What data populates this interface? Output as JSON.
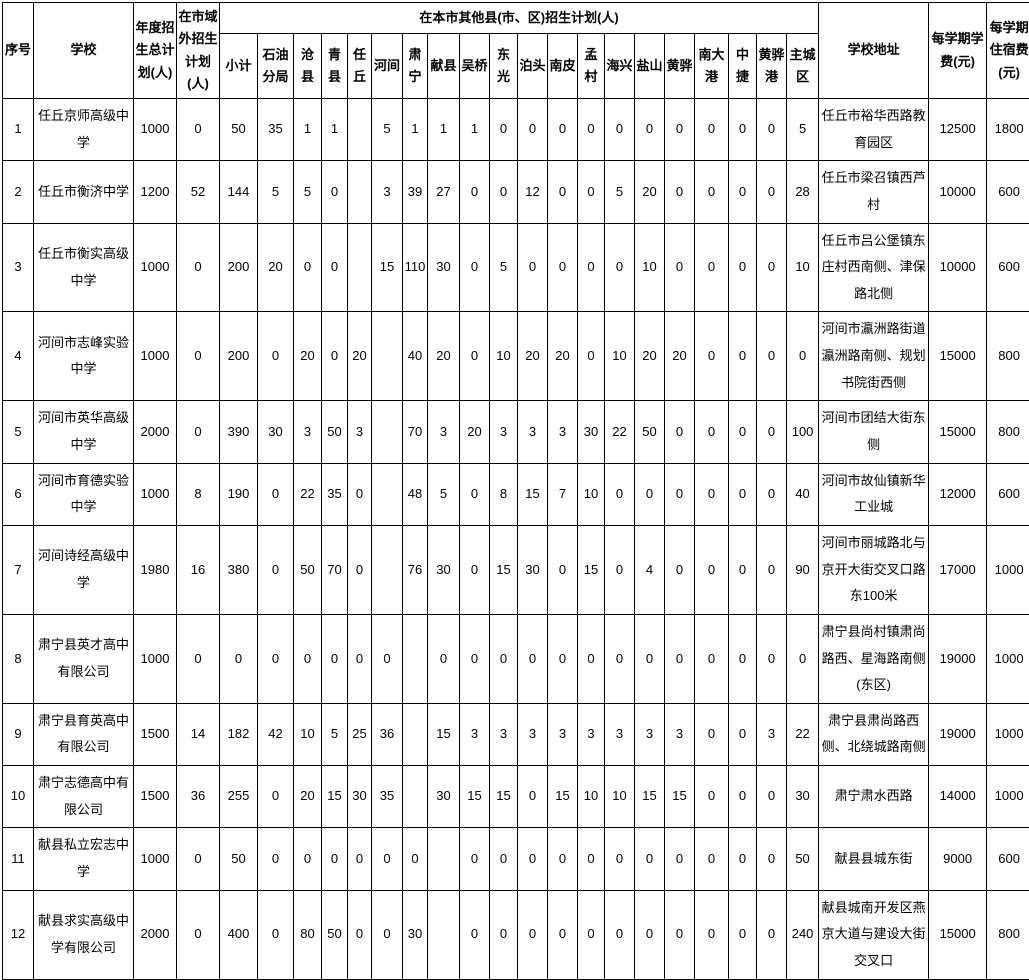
{
  "table": {
    "headers": {
      "no": "序号",
      "school": "学校",
      "annual_plan": "年度招生总计划(人)",
      "outside_city_plan": "在市域外招生计划(人)",
      "county_group": "在本市其他县(市、区)招生计划(人)",
      "counties": [
        "小计",
        "石油分局",
        "沧县",
        "青县",
        "任丘",
        "河间",
        "肃宁",
        "献县",
        "吴桥",
        "东光",
        "泊头",
        "南皮",
        "孟村",
        "海兴",
        "盐山",
        "黄骅",
        "南大港",
        "中捷",
        "黄骅港",
        "主城区"
      ],
      "address": "学校地址",
      "tuition": "每学期学费(元)",
      "lodging": "每学期住宿费(元)"
    },
    "rows": [
      {
        "no": "1",
        "school": "任丘京师高级中学",
        "annual": "1000",
        "outside": "0",
        "counties": [
          "50",
          "35",
          "1",
          "1",
          "",
          "5",
          "1",
          "1",
          "1",
          "0",
          "0",
          "0",
          "0",
          "0",
          "0",
          "0",
          "0",
          "0",
          "0",
          "5"
        ],
        "address": "任丘市裕华西路教育园区",
        "tuition": "12500",
        "lodging": "1800"
      },
      {
        "no": "2",
        "school": "任丘市衡济中学",
        "annual": "1200",
        "outside": "52",
        "counties": [
          "144",
          "5",
          "5",
          "0",
          "",
          "3",
          "39",
          "27",
          "0",
          "0",
          "12",
          "0",
          "0",
          "5",
          "20",
          "0",
          "0",
          "0",
          "0",
          "28"
        ],
        "address": "任丘市梁召镇西芦村",
        "tuition": "10000",
        "lodging": "600"
      },
      {
        "no": "3",
        "school": "任丘市衡实高级中学",
        "annual": "1000",
        "outside": "0",
        "counties": [
          "200",
          "20",
          "0",
          "0",
          "",
          "15",
          "110",
          "30",
          "0",
          "5",
          "0",
          "0",
          "0",
          "0",
          "10",
          "0",
          "0",
          "0",
          "0",
          "10"
        ],
        "address": "任丘市吕公堡镇东庄村西南侧、津保路北侧",
        "tuition": "10000",
        "lodging": "600"
      },
      {
        "no": "4",
        "school": "河间市志峰实验中学",
        "annual": "1000",
        "outside": "0",
        "counties": [
          "200",
          "0",
          "20",
          "0",
          "20",
          "",
          "40",
          "20",
          "0",
          "10",
          "20",
          "20",
          "0",
          "10",
          "20",
          "20",
          "0",
          "0",
          "0",
          "0"
        ],
        "address": "河间市瀛洲路街道瀛洲路南侧、规划书院街西侧",
        "tuition": "15000",
        "lodging": "800"
      },
      {
        "no": "5",
        "school": "河间市英华高级中学",
        "annual": "2000",
        "outside": "0",
        "counties": [
          "390",
          "30",
          "3",
          "50",
          "3",
          "",
          "70",
          "3",
          "20",
          "3",
          "3",
          "3",
          "30",
          "22",
          "50",
          "0",
          "0",
          "0",
          "0",
          "100"
        ],
        "address": "河间市团结大街东侧",
        "tuition": "15000",
        "lodging": "800"
      },
      {
        "no": "6",
        "school": "河间市育德实验中学",
        "annual": "1000",
        "outside": "8",
        "counties": [
          "190",
          "0",
          "22",
          "35",
          "0",
          "",
          "48",
          "5",
          "0",
          "8",
          "15",
          "7",
          "10",
          "0",
          "0",
          "0",
          "0",
          "0",
          "0",
          "40"
        ],
        "address": "河间市故仙镇新华工业城",
        "tuition": "12000",
        "lodging": "600"
      },
      {
        "no": "7",
        "school": "河间诗经高级中学",
        "annual": "1980",
        "outside": "16",
        "counties": [
          "380",
          "0",
          "50",
          "70",
          "0",
          "",
          "76",
          "30",
          "0",
          "15",
          "30",
          "0",
          "15",
          "0",
          "4",
          "0",
          "0",
          "0",
          "0",
          "90"
        ],
        "address": "河间市丽城路北与京开大街交叉口路东100米",
        "tuition": "17000",
        "lodging": "1000"
      },
      {
        "no": "8",
        "school": "肃宁县英才高中有限公司",
        "annual": "1000",
        "outside": "0",
        "counties": [
          "0",
          "0",
          "0",
          "0",
          "0",
          "0",
          "",
          "0",
          "0",
          "0",
          "0",
          "0",
          "0",
          "0",
          "0",
          "0",
          "0",
          "0",
          "0",
          "0"
        ],
        "address": "肃宁县尚村镇肃尚路西、星海路南侧(东区)",
        "tuition": "19000",
        "lodging": "1000"
      },
      {
        "no": "9",
        "school": "肃宁县育英高中有限公司",
        "annual": "1500",
        "outside": "14",
        "counties": [
          "182",
          "42",
          "10",
          "5",
          "25",
          "36",
          "",
          "15",
          "3",
          "3",
          "3",
          "3",
          "3",
          "3",
          "3",
          "3",
          "0",
          "0",
          "3",
          "22"
        ],
        "address": "肃宁县肃尚路西侧、北绕城路南侧",
        "tuition": "19000",
        "lodging": "1000"
      },
      {
        "no": "10",
        "school": "肃宁志德高中有限公司",
        "annual": "1500",
        "outside": "36",
        "counties": [
          "255",
          "0",
          "20",
          "15",
          "30",
          "35",
          "",
          "30",
          "15",
          "15",
          "0",
          "15",
          "10",
          "10",
          "15",
          "15",
          "0",
          "0",
          "0",
          "30"
        ],
        "address": "肃宁肃水西路",
        "tuition": "14000",
        "lodging": "1000"
      },
      {
        "no": "11",
        "school": "献县私立宏志中学",
        "annual": "1000",
        "outside": "0",
        "counties": [
          "50",
          "0",
          "0",
          "0",
          "0",
          "0",
          "0",
          "",
          "0",
          "0",
          "0",
          "0",
          "0",
          "0",
          "0",
          "0",
          "0",
          "0",
          "0",
          "50"
        ],
        "address": "献县县城东街",
        "tuition": "9000",
        "lodging": "600"
      },
      {
        "no": "12",
        "school": "献县求实高级中学有限公司",
        "annual": "2000",
        "outside": "0",
        "counties": [
          "400",
          "0",
          "80",
          "50",
          "0",
          "0",
          "30",
          "",
          "0",
          "0",
          "0",
          "0",
          "0",
          "0",
          "0",
          "0",
          "0",
          "0",
          "0",
          "240"
        ],
        "address": "献县城南开发区燕京大道与建设大街交叉口",
        "tuition": "15000",
        "lodging": "800"
      }
    ]
  }
}
